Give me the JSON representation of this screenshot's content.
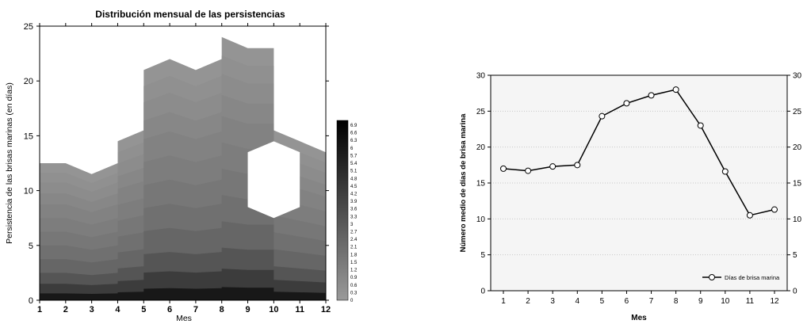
{
  "chart_data": [
    {
      "type": "heatmap",
      "title": "Distribución mensual de las persistencias",
      "xlabel": "Mes",
      "ylabel": "Persistencia de las brisas marinas (en días)",
      "x_ticks": [
        "1",
        "2",
        "3",
        "4",
        "5",
        "6",
        "7",
        "8",
        "9",
        "10",
        "11",
        "12"
      ],
      "y_ticks": [
        "0",
        "5",
        "10",
        "15",
        "20",
        "25"
      ],
      "xlim": [
        1,
        12
      ],
      "ylim": [
        0,
        25
      ],
      "colorbar": {
        "labels": [
          "6.9",
          "6.6",
          "6.3",
          "6",
          "5.7",
          "5.4",
          "5.1",
          "4.8",
          "4.5",
          "4.2",
          "3.9",
          "3.6",
          "3.3",
          "3",
          "2.7",
          "2.4",
          "2.1",
          "1.8",
          "1.5",
          "1.2",
          "0.9",
          "0.6",
          "0.3",
          "0"
        ],
        "range": [
          0,
          6.9
        ]
      },
      "upper_boundary": {
        "x": [
          1,
          2,
          3,
          4,
          4,
          5,
          5,
          6,
          7,
          8,
          8,
          9,
          10,
          10,
          11,
          12
        ],
        "y": [
          12.5,
          12.5,
          11.5,
          12.5,
          14.5,
          15.5,
          21,
          22,
          21,
          22,
          24,
          23,
          23,
          15.5,
          14.5,
          13.5
        ]
      },
      "void_region": {
        "x": [
          9,
          9,
          10,
          11,
          11,
          10
        ],
        "y": [
          13.5,
          8.5,
          7.5,
          8.5,
          13.5,
          14.5
        ]
      },
      "fill_colors": [
        "#181818",
        "#3c3c3c",
        "#555555",
        "#666666",
        "#707070",
        "#777777",
        "#7d7d7d",
        "#828282",
        "#878787",
        "#8c8c8c",
        "#909090",
        "#949494"
      ]
    },
    {
      "type": "line",
      "xlabel": "Mes",
      "ylabel": "Número medio de días de brisa marina",
      "x": [
        1,
        2,
        3,
        4,
        5,
        6,
        7,
        8,
        9,
        10,
        11,
        12
      ],
      "x_ticks": [
        "1",
        "2",
        "3",
        "4",
        "5",
        "6",
        "7",
        "8",
        "9",
        "10",
        "11",
        "12"
      ],
      "y_ticks": [
        "0",
        "5",
        "10",
        "15",
        "20",
        "25",
        "30"
      ],
      "ylim": [
        0,
        30
      ],
      "grid": true,
      "legend_position": "bottom-right",
      "series": [
        {
          "name": "Días de brisa marina",
          "values": [
            17,
            16.7,
            17.3,
            17.5,
            24.3,
            26.1,
            27.2,
            28,
            23,
            16.6,
            10.5,
            11.3
          ],
          "color": "#000000",
          "marker": "open-circle"
        }
      ]
    }
  ]
}
